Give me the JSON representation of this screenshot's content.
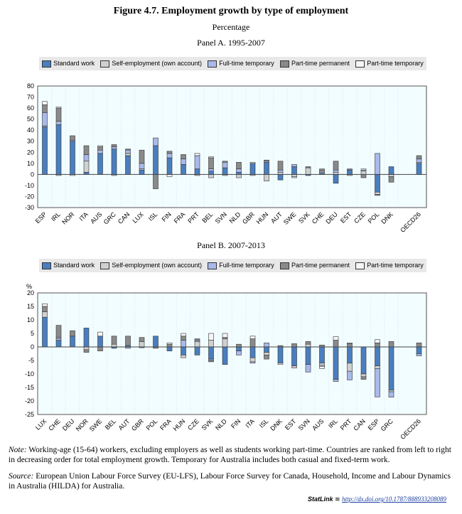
{
  "title": "Figure 4.7. Employment growth by type of employment",
  "subtitle": "Percentage",
  "colors": {
    "Standard work": "#4a7ebf",
    "Self-employment (own account)": "#d0d0d0",
    "Full-time temporary": "#a9b9ea",
    "Part-time permanent": "#8a8a8a",
    "Part-time temporary": "#f6f6f6"
  },
  "legend": [
    "Standard work",
    "Self-employment (own account)",
    "Full-time temporary",
    "Part-time permanent",
    "Part-time temporary"
  ],
  "chart_data": [
    {
      "type": "bar",
      "stacked": true,
      "title": "Panel A. 1995-2007",
      "ylabel": "",
      "ylim": [
        -30,
        80
      ],
      "yticks": [
        -30,
        -20,
        -10,
        0,
        10,
        20,
        30,
        40,
        50,
        60,
        70,
        80
      ],
      "categories": [
        "ESP",
        "IRL",
        "NOR",
        "ITA",
        "AUS",
        "GRC",
        "CAN",
        "LUX",
        "ISL",
        "FIN",
        "FRA",
        "PRT",
        "BEL",
        "SVN",
        "NLD",
        "GBR",
        "HUN",
        "AUT",
        "SWE",
        "SVK",
        "CHE",
        "DEU",
        "EST",
        "CZE",
        "POL",
        "DNK",
        "OECD26"
      ],
      "series": [
        {
          "name": "Standard work",
          "values": [
            43,
            45,
            30,
            2,
            19,
            23,
            17,
            4,
            26,
            15,
            9,
            5,
            3,
            6,
            2,
            10,
            11,
            -5,
            7,
            -1,
            1,
            -8,
            4,
            0,
            -16,
            7,
            10
          ]
        },
        {
          "name": "Self-employment (own account)",
          "values": [
            1,
            -1,
            0,
            10,
            0,
            -1,
            2,
            1,
            0,
            0,
            0,
            -1,
            -3,
            -1,
            -3,
            -1,
            -6,
            2,
            -2,
            6,
            1,
            2,
            -1,
            3,
            -2,
            -2,
            1
          ]
        },
        {
          "name": "Full-time temporary",
          "values": [
            12,
            3,
            1,
            6,
            3,
            2,
            3,
            5,
            7,
            4,
            5,
            12,
            2,
            5,
            3,
            0,
            1,
            2,
            2,
            0,
            1,
            2,
            0,
            1,
            19,
            0,
            3
          ]
        },
        {
          "name": "Part-time permanent",
          "values": [
            7,
            12,
            4,
            8,
            3,
            2,
            1,
            12,
            -13,
            2,
            4,
            0,
            10,
            1,
            6,
            0,
            1,
            8,
            0,
            1,
            2,
            8,
            1,
            -3,
            -1,
            -5,
            3
          ]
        },
        {
          "name": "Part-time temporary",
          "values": [
            3,
            1,
            -1,
            0,
            1,
            0,
            0,
            0,
            0,
            -2,
            0,
            2,
            1,
            0,
            0,
            1,
            0,
            0,
            -1,
            0,
            0,
            0,
            0,
            1,
            0,
            0,
            0
          ]
        }
      ]
    },
    {
      "type": "bar",
      "stacked": true,
      "title": "Panel B. 2007-2013",
      "ylabel": "%",
      "ylim": [
        -25,
        20
      ],
      "yticks": [
        -25,
        -20,
        -15,
        -10,
        -5,
        0,
        5,
        10,
        15,
        20
      ],
      "categories": [
        "LUX",
        "CHE",
        "DEU",
        "NOR",
        "SWE",
        "BEL",
        "AUT",
        "GBR",
        "POL",
        "FRA",
        "HUN",
        "CZE",
        "SVK",
        "NLD",
        "FIN",
        "ITA",
        "ISL",
        "DNK",
        "EST",
        "SVN",
        "AUS",
        "IRL",
        "PRT",
        "CAN",
        "ESP",
        "GRC",
        "OECD26"
      ],
      "series": [
        {
          "name": "Standard work",
          "values": [
            11,
            2.5,
            4,
            7,
            4,
            -0.5,
            0.5,
            -0.3,
            4,
            -1.5,
            -3,
            -3,
            -4.5,
            -6.5,
            -1.5,
            -4,
            -2,
            -6,
            -7,
            -6.5,
            -6,
            -12,
            -6,
            -10,
            -7,
            -16,
            -2.5
          ]
        },
        {
          "name": "Self-employment (own account)",
          "values": [
            2,
            0.5,
            0,
            -1,
            0,
            1,
            0,
            2,
            0,
            0,
            -1,
            2,
            2.5,
            3,
            0,
            -1.5,
            -1,
            0,
            -0.8,
            1,
            -0.8,
            0,
            -3,
            -1,
            -1,
            -0.6,
            0
          ]
        },
        {
          "name": "Full-time temporary",
          "values": [
            0,
            0.5,
            0,
            0,
            0,
            0,
            -0.5,
            0,
            0,
            0,
            2.5,
            0.5,
            -0.5,
            0,
            -1.5,
            -0.5,
            1.5,
            0,
            0,
            -2.8,
            -0.4,
            -0.8,
            -3.2,
            0,
            -10.5,
            -2,
            -0.8
          ]
        },
        {
          "name": "Part-time permanent",
          "values": [
            2,
            4.5,
            2,
            -1,
            -1.5,
            3,
            3.5,
            1.5,
            -0.5,
            1,
            1.5,
            0.5,
            -0.5,
            0.5,
            1,
            3,
            -1.5,
            0.5,
            1.2,
            1,
            0.7,
            2.5,
            1.2,
            -1,
            1.5,
            2,
            1.5
          ]
        },
        {
          "name": "Part-time temporary",
          "values": [
            1,
            0,
            0,
            0,
            1.5,
            0,
            0,
            0,
            0,
            0.5,
            1,
            0,
            2.5,
            1.5,
            0,
            1,
            0,
            -0.5,
            0,
            0,
            -0.8,
            1.3,
            0.3,
            0,
            1.2,
            0,
            0
          ]
        }
      ]
    }
  ],
  "note_label": "Note:",
  "note": " Working-age (15-64) workers, excluding employers as well as students working part-time. Countries are ranked from left to right in decreasing order for total employment growth. Temporary for Australia includes both casual and fixed-term work.",
  "source_label": "Source:",
  "source": " European Union Labour Force Survey (EU-LFS), Labour Force Survey for Canada, Household, Income and Labour Dynamics in Australia (HILDA) for Australia.",
  "statlink_label": "StatLink",
  "statlink_url": "http://dx.doi.org/10.1787/888933208089"
}
